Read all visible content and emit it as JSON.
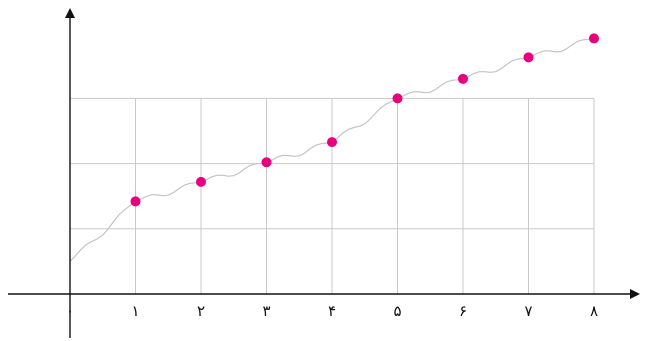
{
  "chart_data": {
    "type": "scatter",
    "title": "",
    "xlabel": "",
    "ylabel": "",
    "x_tick_labels": [
      "٠",
      "١",
      "٢",
      "٣",
      "۴",
      "۵",
      "۶",
      "٧",
      "٨"
    ],
    "x": [
      1,
      2,
      3,
      4,
      5,
      6,
      7,
      8
    ],
    "values": [
      1.42,
      1.72,
      2.02,
      2.33,
      3.0,
      3.3,
      3.63,
      3.92
    ],
    "xlim": [
      0,
      8.7
    ],
    "ylim": [
      0,
      4.5
    ],
    "y_grid": [
      1,
      2,
      3
    ],
    "grid": true,
    "trend_line": true,
    "colors": {
      "points": "#e6007e",
      "trend_line": "#c4c4c4",
      "grid": "#c9c9c9",
      "axis": "#111111"
    }
  }
}
